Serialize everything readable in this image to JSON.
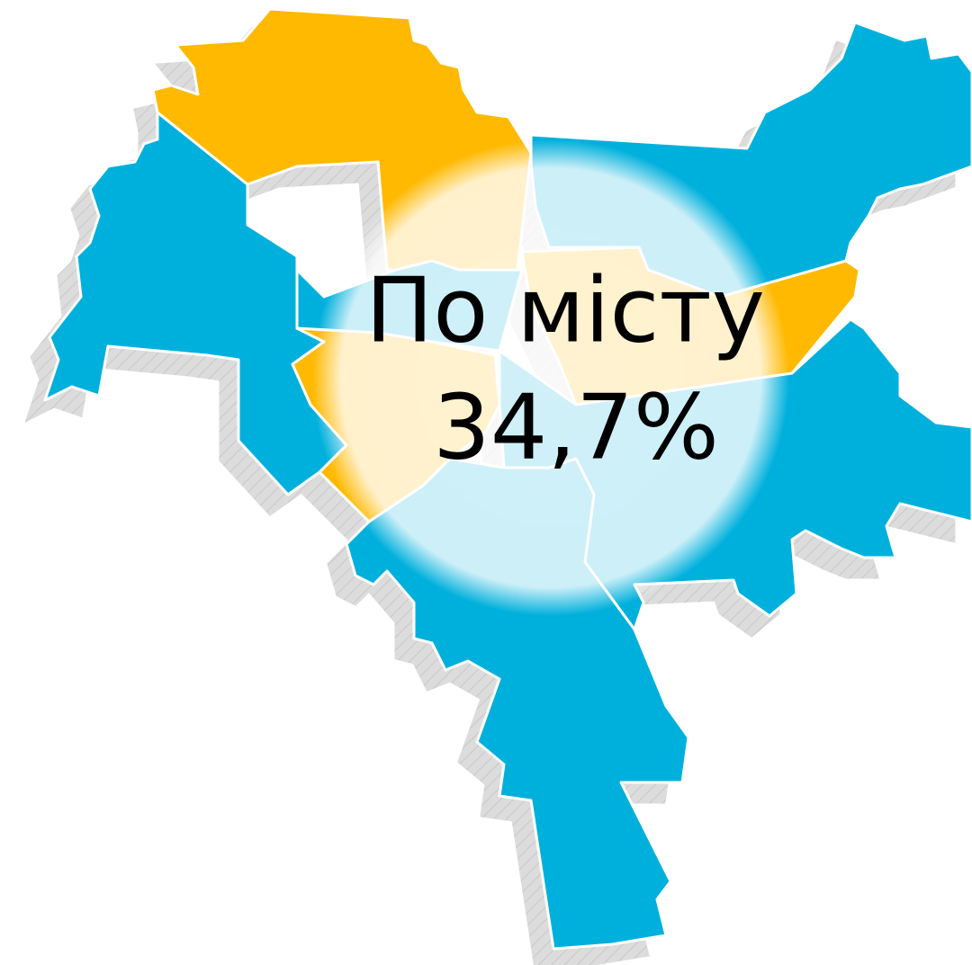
{
  "map": {
    "label": "По місту",
    "value": "34,7%"
  }
}
